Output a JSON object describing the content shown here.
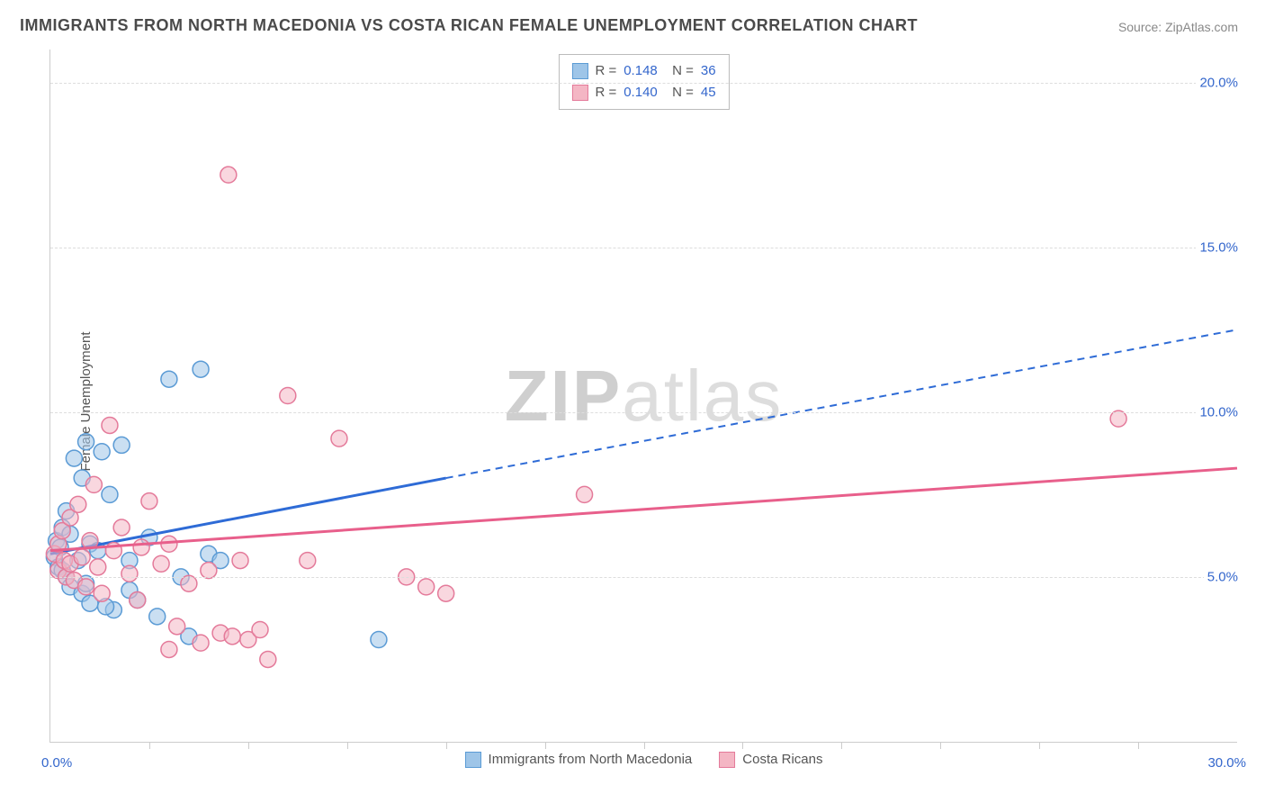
{
  "title": "IMMIGRANTS FROM NORTH MACEDONIA VS COSTA RICAN FEMALE UNEMPLOYMENT CORRELATION CHART",
  "source": "Source: ZipAtlas.com",
  "ylabel": "Female Unemployment",
  "watermark": {
    "bold": "ZIP",
    "light": "atlas"
  },
  "chart": {
    "type": "scatter-with-regression",
    "xlim": [
      0,
      30
    ],
    "ylim": [
      0,
      21
    ],
    "xlim_labels": [
      "0.0%",
      "30.0%"
    ],
    "ylim_ticks": [
      5,
      10,
      15,
      20
    ],
    "ylim_labels": [
      "5.0%",
      "10.0%",
      "15.0%",
      "20.0%"
    ],
    "x_minor_ticks": [
      2.5,
      5,
      7.5,
      10,
      12.5,
      15,
      17.5,
      20,
      22.5,
      25,
      27.5
    ],
    "background_color": "#ffffff",
    "grid_color": "#dddddd",
    "marker_radius": 9,
    "marker_opacity": 0.55,
    "line_width": 3,
    "series": [
      {
        "id": "north_macedonia",
        "label": "Immigrants from North Macedonia",
        "color_fill": "#9ec5e8",
        "color_stroke": "#5b9bd5",
        "line_color": "#2e6bd6",
        "R": "0.148",
        "N": "36",
        "regression": {
          "x0": 0,
          "y0": 5.7,
          "x1": 10,
          "y1": 8.0,
          "x_ext": 30,
          "y_ext": 12.5
        },
        "points": [
          [
            0.1,
            5.6
          ],
          [
            0.15,
            6.1
          ],
          [
            0.2,
            5.3
          ],
          [
            0.25,
            5.9
          ],
          [
            0.3,
            6.5
          ],
          [
            0.3,
            5.2
          ],
          [
            0.4,
            7.0
          ],
          [
            0.4,
            5.0
          ],
          [
            0.5,
            4.7
          ],
          [
            0.5,
            6.3
          ],
          [
            0.6,
            8.6
          ],
          [
            0.7,
            5.5
          ],
          [
            0.8,
            8.0
          ],
          [
            0.8,
            4.5
          ],
          [
            0.9,
            9.1
          ],
          [
            1.0,
            6.0
          ],
          [
            1.0,
            4.2
          ],
          [
            1.2,
            5.8
          ],
          [
            1.3,
            8.8
          ],
          [
            1.5,
            7.5
          ],
          [
            1.6,
            4.0
          ],
          [
            1.8,
            9.0
          ],
          [
            2.0,
            5.5
          ],
          [
            2.2,
            4.3
          ],
          [
            2.5,
            6.2
          ],
          [
            2.7,
            3.8
          ],
          [
            3.0,
            11.0
          ],
          [
            3.3,
            5.0
          ],
          [
            3.5,
            3.2
          ],
          [
            3.8,
            11.3
          ],
          [
            4.0,
            5.7
          ],
          [
            4.3,
            5.5
          ],
          [
            2.0,
            4.6
          ],
          [
            1.4,
            4.1
          ],
          [
            0.9,
            4.8
          ],
          [
            8.3,
            3.1
          ]
        ]
      },
      {
        "id": "costa_ricans",
        "label": "Costa Ricans",
        "color_fill": "#f4b6c4",
        "color_stroke": "#e47a9a",
        "line_color": "#e85f8b",
        "R": "0.140",
        "N": "45",
        "regression": {
          "x0": 0,
          "y0": 5.8,
          "x1": 30,
          "y1": 8.3,
          "x_ext": 30,
          "y_ext": 8.3
        },
        "points": [
          [
            0.1,
            5.7
          ],
          [
            0.2,
            6.0
          ],
          [
            0.2,
            5.2
          ],
          [
            0.3,
            6.4
          ],
          [
            0.35,
            5.5
          ],
          [
            0.4,
            5.0
          ],
          [
            0.5,
            6.8
          ],
          [
            0.5,
            5.4
          ],
          [
            0.6,
            4.9
          ],
          [
            0.7,
            7.2
          ],
          [
            0.8,
            5.6
          ],
          [
            0.9,
            4.7
          ],
          [
            1.0,
            6.1
          ],
          [
            1.1,
            7.8
          ],
          [
            1.2,
            5.3
          ],
          [
            1.3,
            4.5
          ],
          [
            1.5,
            9.6
          ],
          [
            1.6,
            5.8
          ],
          [
            1.8,
            6.5
          ],
          [
            2.0,
            5.1
          ],
          [
            2.2,
            4.3
          ],
          [
            2.5,
            7.3
          ],
          [
            2.8,
            5.4
          ],
          [
            3.0,
            6.0
          ],
          [
            3.2,
            3.5
          ],
          [
            3.5,
            4.8
          ],
          [
            3.8,
            3.0
          ],
          [
            4.0,
            5.2
          ],
          [
            4.3,
            3.3
          ],
          [
            4.5,
            17.2
          ],
          [
            4.8,
            5.5
          ],
          [
            5.0,
            3.1
          ],
          [
            5.3,
            3.4
          ],
          [
            5.5,
            2.5
          ],
          [
            6.0,
            10.5
          ],
          [
            6.5,
            5.5
          ],
          [
            7.3,
            9.2
          ],
          [
            9.0,
            5.0
          ],
          [
            9.5,
            4.7
          ],
          [
            10.0,
            4.5
          ],
          [
            13.5,
            7.5
          ],
          [
            27.0,
            9.8
          ],
          [
            4.6,
            3.2
          ],
          [
            3.0,
            2.8
          ],
          [
            2.3,
            5.9
          ]
        ]
      }
    ]
  }
}
